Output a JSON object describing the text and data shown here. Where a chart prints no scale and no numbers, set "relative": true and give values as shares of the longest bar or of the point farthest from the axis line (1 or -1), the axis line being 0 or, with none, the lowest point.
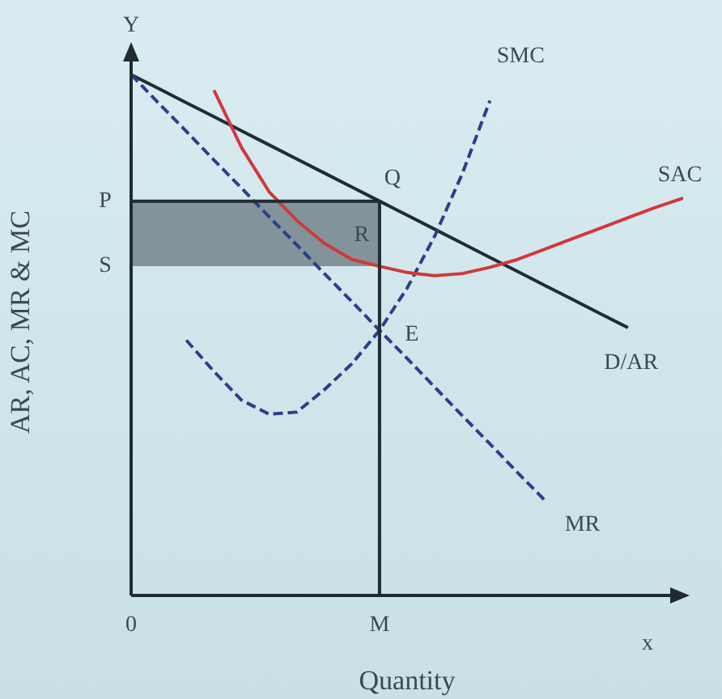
{
  "chart_data": {
    "type": "line",
    "relative": true,
    "marker": "none",
    "xlabel": "Quantity",
    "ylabel": "AR, AC, MR & MC",
    "categories": [
      "0",
      null,
      null,
      null,
      null,
      null,
      null,
      null,
      null,
      "M",
      null,
      null,
      null,
      null,
      null,
      null,
      null,
      null,
      null,
      null,
      null
    ],
    "annotations": [
      "Y",
      "x",
      {
        "text": "P",
        "x": "0",
        "y": 0.757
      },
      {
        "text": "S",
        "x": "0",
        "y": 0.632
      },
      {
        "text": "Q",
        "x": "M",
        "y": 0.757
      },
      {
        "text": "R",
        "x": "M",
        "y": 0.632
      },
      {
        "text": "E",
        "x": "M",
        "y": 0.509
      }
    ],
    "ref_lines": [
      {
        "axis": "x",
        "value": "M",
        "color": "#1f2d33"
      }
    ],
    "series": [
      {
        "name": "D/AR",
        "color": "#1f2d33",
        "line_style": "solid",
        "values": [
          1,
          0.973,
          0.946,
          0.919,
          0.892,
          0.865,
          0.838,
          0.811,
          0.784,
          0.757,
          0.73,
          0.703,
          0.676,
          0.649,
          0.622,
          0.595,
          0.568,
          0.541,
          0.514,
          null,
          null
        ]
      },
      {
        "name": "MR",
        "color": "#2b3f8c",
        "line_style": "dashed",
        "values": [
          1,
          0.945,
          0.891,
          0.836,
          0.782,
          0.727,
          0.673,
          0.618,
          0.564,
          0.509,
          0.455,
          0.4,
          0.345,
          0.291,
          0.236,
          0.182,
          null,
          null,
          null,
          null,
          null
        ]
      },
      {
        "name": "SMC",
        "color": "#2b3f8c",
        "line_style": "dashed",
        "values": [
          null,
          null,
          0.49,
          0.43,
          0.375,
          0.348,
          0.352,
          0.395,
          0.445,
          0.509,
          0.59,
          0.69,
          0.81,
          0.95,
          null,
          null,
          null,
          null,
          null,
          null,
          null
        ]
      },
      {
        "name": "SAC",
        "color": "#d0393b",
        "line_style": "solid",
        "values": [
          null,
          null,
          null,
          0.97,
          0.86,
          0.775,
          0.72,
          0.676,
          0.645,
          0.632,
          0.62,
          0.614,
          0.618,
          0.63,
          0.645,
          0.665,
          0.685,
          0.705,
          0.725,
          0.745,
          0.763
        ]
      },
      {
        "color": "#1f2d33",
        "line_style": "solid",
        "values": [
          0.757,
          0.757,
          0.757,
          0.757,
          0.757,
          0.757,
          0.757,
          0.757,
          0.757,
          0.757,
          null,
          null,
          null,
          null,
          null,
          null,
          null,
          null,
          null,
          null,
          null
        ],
        "lower": [
          0.632,
          0.632,
          0.632,
          0.632,
          0.632,
          0.632,
          0.632,
          0.632,
          0.632,
          0.632,
          null,
          null,
          null,
          null,
          null,
          null,
          null,
          null,
          null,
          null,
          null
        ],
        "upper": [
          0.757,
          0.757,
          0.757,
          0.757,
          0.757,
          0.757,
          0.757,
          0.757,
          0.757,
          0.757,
          null,
          null,
          null,
          null,
          null,
          null,
          null,
          null,
          null,
          null,
          null
        ]
      }
    ]
  }
}
